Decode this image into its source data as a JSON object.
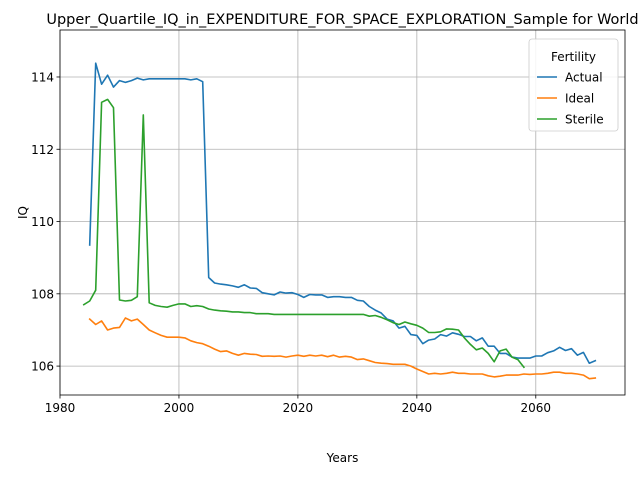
{
  "chart_data": {
    "type": "line",
    "title": "Upper_Quartile_IQ_in_EXPENDITURE_FOR_SPACE_EXPLORATION_Sample for World",
    "xlabel": "Years",
    "ylabel": "IQ",
    "xlim": [
      1980,
      2075
    ],
    "ylim": [
      105.2,
      115.3
    ],
    "xticks": [
      1980,
      2000,
      2020,
      2040,
      2060
    ],
    "yticks": [
      106,
      108,
      110,
      112,
      114
    ],
    "grid": true,
    "legend": {
      "title": "Fertility",
      "placement": "top-right"
    },
    "series": [
      {
        "name": "Actual",
        "color": "#1f77b4",
        "x": [
          1985,
          1986,
          1987,
          1988,
          1989,
          1990,
          1991,
          1992,
          1993,
          1994,
          1995,
          1996,
          1997,
          1998,
          1999,
          2000,
          2001,
          2002,
          2003,
          2004,
          2005,
          2006,
          2007,
          2008,
          2009,
          2010,
          2011,
          2012,
          2013,
          2014,
          2015,
          2016,
          2017,
          2018,
          2019,
          2020,
          2021,
          2022,
          2023,
          2024,
          2025,
          2026,
          2027,
          2028,
          2029,
          2030,
          2031,
          2032,
          2033,
          2034,
          2035,
          2036,
          2037,
          2038,
          2039,
          2040,
          2041,
          2042,
          2043,
          2044,
          2045,
          2046,
          2047,
          2048,
          2049,
          2050,
          2051,
          2052,
          2053,
          2054,
          2055,
          2056,
          2057,
          2058,
          2059,
          2060,
          2061,
          2062,
          2063,
          2064,
          2065,
          2066,
          2067,
          2068,
          2069,
          2070
        ],
        "values": [
          109.35,
          114.38,
          113.8,
          114.05,
          113.72,
          113.9,
          113.85,
          113.9,
          113.97,
          113.92,
          113.95,
          113.95,
          113.95,
          113.95,
          113.95,
          113.95,
          113.95,
          113.92,
          113.95,
          113.87,
          108.45,
          108.3,
          108.27,
          108.25,
          108.22,
          108.18,
          108.25,
          108.16,
          108.15,
          108.03,
          108.0,
          107.97,
          108.05,
          108.02,
          108.03,
          107.98,
          107.9,
          107.98,
          107.97,
          107.97,
          107.9,
          107.92,
          107.92,
          107.9,
          107.9,
          107.82,
          107.8,
          107.65,
          107.55,
          107.47,
          107.3,
          107.25,
          107.05,
          107.1,
          106.87,
          106.85,
          106.62,
          106.72,
          106.75,
          106.87,
          106.83,
          106.92,
          106.88,
          106.82,
          106.82,
          106.7,
          106.78,
          106.55,
          106.55,
          106.35,
          106.35,
          106.25,
          106.22,
          106.22,
          106.22,
          106.28,
          106.28,
          106.37,
          106.42,
          106.52,
          106.43,
          106.48,
          106.3,
          106.38,
          106.08,
          106.15
        ]
      },
      {
        "name": "Ideal",
        "color": "#ff7f0e",
        "x": [
          1985,
          1986,
          1987,
          1988,
          1989,
          1990,
          1991,
          1992,
          1993,
          1994,
          1995,
          1996,
          1997,
          1998,
          1999,
          2000,
          2001,
          2002,
          2003,
          2004,
          2005,
          2006,
          2007,
          2008,
          2009,
          2010,
          2011,
          2012,
          2013,
          2014,
          2015,
          2016,
          2017,
          2018,
          2019,
          2020,
          2021,
          2022,
          2023,
          2024,
          2025,
          2026,
          2027,
          2028,
          2029,
          2030,
          2031,
          2032,
          2033,
          2034,
          2035,
          2036,
          2037,
          2038,
          2039,
          2040,
          2041,
          2042,
          2043,
          2044,
          2045,
          2046,
          2047,
          2048,
          2049,
          2050,
          2051,
          2052,
          2053,
          2054,
          2055,
          2056,
          2057,
          2058,
          2059,
          2060,
          2061,
          2062,
          2063,
          2064,
          2065,
          2066,
          2067,
          2068,
          2069,
          2070
        ],
        "values": [
          107.3,
          107.15,
          107.25,
          107.0,
          107.05,
          107.07,
          107.33,
          107.25,
          107.3,
          107.15,
          107.0,
          106.92,
          106.85,
          106.8,
          106.8,
          106.8,
          106.78,
          106.7,
          106.65,
          106.62,
          106.55,
          106.47,
          106.4,
          106.42,
          106.35,
          106.3,
          106.35,
          106.33,
          106.32,
          106.27,
          106.28,
          106.27,
          106.28,
          106.25,
          106.28,
          106.3,
          106.27,
          106.3,
          106.28,
          106.3,
          106.26,
          106.3,
          106.25,
          106.27,
          106.25,
          106.18,
          106.2,
          106.15,
          106.1,
          106.08,
          106.07,
          106.05,
          106.05,
          106.05,
          106.0,
          105.92,
          105.85,
          105.78,
          105.8,
          105.78,
          105.8,
          105.83,
          105.8,
          105.8,
          105.78,
          105.78,
          105.78,
          105.73,
          105.7,
          105.72,
          105.75,
          105.75,
          105.75,
          105.78,
          105.77,
          105.78,
          105.78,
          105.8,
          105.83,
          105.83,
          105.8,
          105.8,
          105.78,
          105.75,
          105.65,
          105.67
        ]
      },
      {
        "name": "Sterile",
        "color": "#2ca02c",
        "x": [
          1984,
          1985,
          1986,
          1987,
          1988,
          1989,
          1990,
          1991,
          1992,
          1993,
          1994,
          1995,
          1996,
          1997,
          1998,
          1999,
          2000,
          2001,
          2002,
          2003,
          2004,
          2005,
          2006,
          2007,
          2008,
          2009,
          2010,
          2011,
          2012,
          2013,
          2014,
          2015,
          2016,
          2017,
          2018,
          2019,
          2020,
          2021,
          2022,
          2023,
          2024,
          2025,
          2026,
          2027,
          2028,
          2029,
          2030,
          2031,
          2032,
          2033,
          2034,
          2035,
          2036,
          2037,
          2038,
          2039,
          2040,
          2041,
          2042,
          2043,
          2044,
          2045,
          2046,
          2047,
          2048,
          2049,
          2050,
          2051,
          2052,
          2053,
          2054,
          2055,
          2056,
          2057,
          2058
        ],
        "values": [
          107.7,
          107.8,
          108.1,
          113.3,
          113.38,
          113.15,
          107.83,
          107.8,
          107.82,
          107.92,
          112.95,
          107.75,
          107.68,
          107.65,
          107.63,
          107.68,
          107.72,
          107.72,
          107.65,
          107.67,
          107.65,
          107.58,
          107.55,
          107.53,
          107.52,
          107.5,
          107.5,
          107.48,
          107.48,
          107.45,
          107.45,
          107.45,
          107.43,
          107.43,
          107.43,
          107.43,
          107.43,
          107.43,
          107.43,
          107.43,
          107.43,
          107.43,
          107.43,
          107.43,
          107.43,
          107.43,
          107.43,
          107.43,
          107.38,
          107.4,
          107.35,
          107.28,
          107.2,
          107.15,
          107.22,
          107.17,
          107.13,
          107.05,
          106.93,
          106.93,
          106.95,
          107.03,
          107.02,
          107.0,
          106.78,
          106.6,
          106.45,
          106.5,
          106.35,
          106.12,
          106.42,
          106.47,
          106.25,
          106.18,
          105.97
        ]
      }
    ]
  }
}
